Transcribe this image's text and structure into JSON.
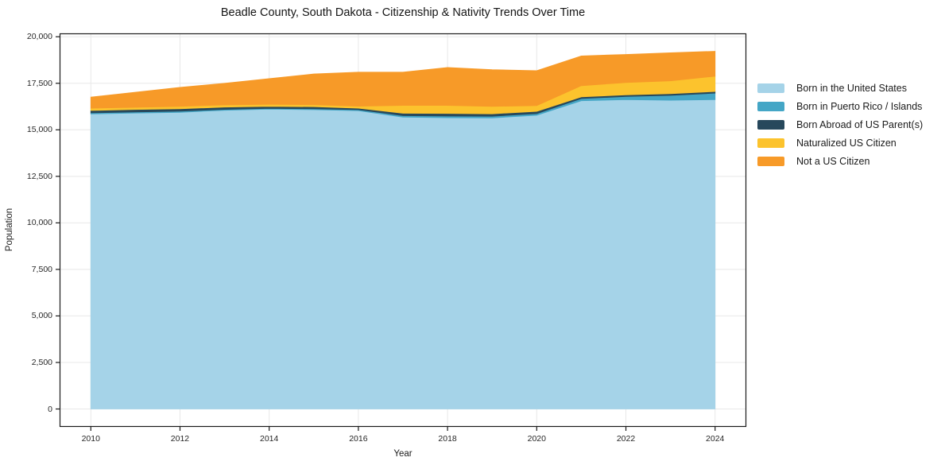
{
  "chart_data": {
    "type": "area",
    "stacked": true,
    "title": "Beadle County, South Dakota - Citizenship & Nativity Trends Over Time",
    "xlabel": "Year",
    "ylabel": "Population",
    "x": [
      2010,
      2011,
      2012,
      2013,
      2014,
      2015,
      2016,
      2017,
      2018,
      2019,
      2020,
      2021,
      2022,
      2023,
      2024
    ],
    "series": [
      {
        "name": "Born in the United States",
        "color": "#a5d3e8",
        "values": [
          15850,
          15900,
          15940,
          16050,
          16110,
          16080,
          16030,
          15680,
          15650,
          15640,
          15780,
          16560,
          16620,
          16590,
          16620
        ]
      },
      {
        "name": "Born in Puerto Rico / Islands",
        "color": "#44a6c6",
        "values": [
          60,
          60,
          60,
          50,
          40,
          50,
          50,
          80,
          90,
          90,
          90,
          120,
          170,
          260,
          350
        ]
      },
      {
        "name": "Born Abroad of US Parent(s)",
        "color": "#27485c",
        "values": [
          130,
          130,
          130,
          120,
          110,
          110,
          80,
          130,
          140,
          130,
          120,
          90,
          90,
          90,
          90
        ]
      },
      {
        "name": "Naturalized US Citizen",
        "color": "#fcc32d",
        "values": [
          120,
          120,
          130,
          120,
          110,
          110,
          110,
          420,
          430,
          400,
          310,
          600,
          660,
          690,
          820
        ]
      },
      {
        "name": "Not a US Citizen",
        "color": "#f79a28",
        "values": [
          600,
          810,
          1020,
          1160,
          1380,
          1650,
          1830,
          1790,
          2040,
          1970,
          1880,
          1600,
          1510,
          1510,
          1340
        ]
      }
    ],
    "xticks": [
      2010,
      2012,
      2014,
      2016,
      2018,
      2020,
      2022,
      2024
    ],
    "yticks": [
      0,
      2500,
      5000,
      7500,
      10000,
      12500,
      15000,
      17500,
      20000
    ],
    "xlim": [
      2009.3,
      2024.7
    ],
    "ylim": [
      -961,
      20181
    ],
    "grid": true,
    "grid_color": "#e8e8e8",
    "spine_color": "#1a1a1a",
    "legend_position": "right"
  }
}
